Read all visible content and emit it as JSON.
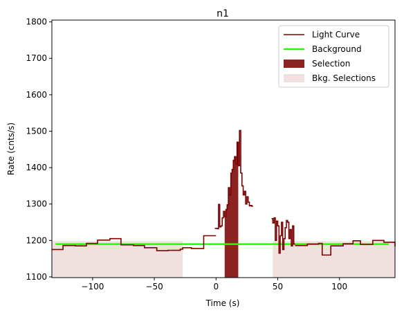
{
  "chart_data": {
    "type": "line",
    "title": "n1",
    "xlabel": "Time (s)",
    "ylabel": "Rate (cnts/s)",
    "xlim": [
      -133,
      145
    ],
    "ylim": [
      1098,
      1805
    ],
    "xticks": [
      -100,
      -50,
      0,
      50,
      100
    ],
    "yticks": [
      1100,
      1200,
      1300,
      1400,
      1500,
      1600,
      1700,
      1800
    ],
    "grid": false,
    "legend_position": "top-right",
    "colors": {
      "light_curve": "#7a0000",
      "background": "#22ff00",
      "selection": "#8b2323",
      "bkg_selection": "#f0e0e0"
    },
    "legend": [
      {
        "label": "Light Curve",
        "kind": "line",
        "color": "#7a0000"
      },
      {
        "label": "Background",
        "kind": "line",
        "color": "#22ff00"
      },
      {
        "label": "Selection",
        "kind": "patch",
        "color": "#8b2323"
      },
      {
        "label": "Bkg. Selections",
        "kind": "patch",
        "color": "#f0e0e0"
      }
    ],
    "background_level": 1190,
    "selection_interval": [
      7,
      18
    ],
    "bkg_selection_intervals": [
      [
        -133,
        -27
      ],
      [
        46,
        145
      ]
    ],
    "light_curve_segments": [
      [
        [
          -133,
          1175
        ],
        [
          -124,
          1186
        ],
        [
          -114,
          1185
        ],
        [
          -105,
          1192
        ],
        [
          -96,
          1201
        ],
        [
          -86,
          1205
        ],
        [
          -77,
          1188
        ],
        [
          -67,
          1186
        ],
        [
          -58,
          1180
        ],
        [
          -48,
          1172
        ],
        [
          -39,
          1173
        ],
        [
          -29,
          1176
        ],
        [
          -27,
          1180
        ],
        [
          -20,
          1178
        ],
        [
          -10,
          1213
        ],
        [
          0,
          1213
        ]
      ],
      [
        [
          -1,
          1233
        ],
        [
          1,
          1232
        ],
        [
          2,
          1299
        ],
        [
          3,
          1237
        ],
        [
          4,
          1240
        ],
        [
          5,
          1262
        ],
        [
          6,
          1280
        ],
        [
          7,
          1265
        ],
        [
          8,
          1285
        ],
        [
          9,
          1298
        ],
        [
          10,
          1345
        ],
        [
          11,
          1325
        ],
        [
          12,
          1385
        ],
        [
          13,
          1395
        ],
        [
          14,
          1420
        ],
        [
          15,
          1430
        ],
        [
          16,
          1410
        ],
        [
          17,
          1470
        ],
        [
          18,
          1405
        ],
        [
          19,
          1502
        ],
        [
          20,
          1385
        ],
        [
          21,
          1350
        ],
        [
          22,
          1325
        ],
        [
          23,
          1335
        ],
        [
          24,
          1300
        ],
        [
          25,
          1320
        ],
        [
          26,
          1305
        ],
        [
          27,
          1295
        ],
        [
          28,
          1296
        ],
        [
          29,
          1294
        ],
        [
          30,
          1294
        ]
      ],
      [
        [
          45,
          1260
        ],
        [
          46,
          1248
        ],
        [
          47,
          1262
        ],
        [
          48,
          1200
        ],
        [
          49,
          1253
        ],
        [
          50,
          1240
        ],
        [
          51,
          1165
        ],
        [
          52,
          1213
        ],
        [
          53,
          1250
        ],
        [
          54,
          1175
        ],
        [
          55,
          1205
        ],
        [
          56,
          1235
        ],
        [
          57,
          1255
        ],
        [
          58,
          1250
        ],
        [
          59,
          1205
        ],
        [
          60,
          1230
        ],
        [
          61,
          1185
        ],
        [
          62,
          1240
        ],
        [
          63,
          1190
        ],
        [
          64,
          1190
        ]
      ],
      [
        [
          64,
          1186
        ],
        [
          74,
          1190
        ],
        [
          83,
          1192
        ],
        [
          86,
          1160
        ],
        [
          93,
          1185
        ],
        [
          103,
          1191
        ],
        [
          111,
          1199
        ],
        [
          117,
          1189
        ],
        [
          127,
          1200
        ],
        [
          136,
          1195
        ],
        [
          145,
          1183
        ]
      ]
    ]
  }
}
